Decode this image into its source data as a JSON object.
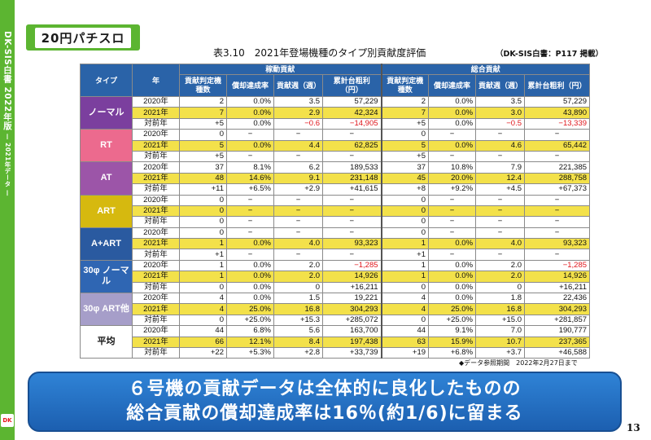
{
  "sidebar": {
    "text_main": "DK-SIS白書 2022年版",
    "text_sub": "— 2021年データ —",
    "logo": "DK"
  },
  "section_label": "20円パチスロ",
  "table_title": "表3.10　2021年登場機種のタイプ別貢献度評価",
  "source_note": "（DK-SIS白書：P117 掲載）",
  "headers": {
    "type": "タイプ",
    "year": "年",
    "group1": "稼動貢献",
    "group2": "総合貢献",
    "cols": [
      "貢献判定機種数",
      "償却達成率",
      "貢献週（週）",
      "累計台粗利（円）",
      "貢献判定機種数",
      "償却達成率",
      "貢献週（週）",
      "累計台粗利（円）"
    ]
  },
  "groups": [
    {
      "type": "ノーマル",
      "color": "#7b3f9e",
      "rows": [
        [
          "2020年",
          "2",
          "0.0%",
          "3.5",
          "57,229",
          "2",
          "0.0%",
          "3.5",
          "57,229"
        ],
        [
          "2021年",
          "7",
          "0.0%",
          "2.9",
          "42,324",
          "7",
          "0.0%",
          "3.0",
          "43,890"
        ],
        [
          "対前年",
          "+5",
          "0.0%",
          "−0.6",
          "−14,905",
          "+5",
          "0.0%",
          "−0.5",
          "−13,339"
        ]
      ]
    },
    {
      "type": "RT",
      "color": "#ec6a8e",
      "rows": [
        [
          "2020年",
          "0",
          "−",
          "−",
          "−",
          "0",
          "−",
          "−",
          "−"
        ],
        [
          "2021年",
          "5",
          "0.0%",
          "4.4",
          "62,825",
          "5",
          "0.0%",
          "4.6",
          "65,442"
        ],
        [
          "対前年",
          "+5",
          "−",
          "−",
          "−",
          "+5",
          "−",
          "−",
          "−"
        ]
      ]
    },
    {
      "type": "AT",
      "color": "#9c55a8",
      "rows": [
        [
          "2020年",
          "37",
          "8.1%",
          "6.2",
          "189,533",
          "37",
          "10.8%",
          "7.9",
          "221,385"
        ],
        [
          "2021年",
          "48",
          "14.6%",
          "9.1",
          "231,148",
          "45",
          "20.0%",
          "12.4",
          "288,758"
        ],
        [
          "対前年",
          "+11",
          "+6.5%",
          "+2.9",
          "+41,615",
          "+8",
          "+9.2%",
          "+4.5",
          "+67,373"
        ]
      ]
    },
    {
      "type": "ART",
      "color": "#d6b90f",
      "rows": [
        [
          "2020年",
          "0",
          "−",
          "−",
          "−",
          "0",
          "−",
          "−",
          "−"
        ],
        [
          "2021年",
          "0",
          "−",
          "−",
          "−",
          "0",
          "−",
          "−",
          "−"
        ],
        [
          "対前年",
          "0",
          "−",
          "−",
          "−",
          "0",
          "−",
          "−",
          "−"
        ]
      ]
    },
    {
      "type": "A+ART",
      "color": "#2a5aa0",
      "rows": [
        [
          "2020年",
          "0",
          "−",
          "−",
          "−",
          "0",
          "−",
          "−",
          "−"
        ],
        [
          "2021年",
          "1",
          "0.0%",
          "4.0",
          "93,323",
          "1",
          "0.0%",
          "4.0",
          "93,323"
        ],
        [
          "対前年",
          "+1",
          "−",
          "−",
          "−",
          "+1",
          "−",
          "−",
          "−"
        ]
      ]
    },
    {
      "type": "30φ ノーマル",
      "color": "#2f66b3",
      "rows": [
        [
          "2020年",
          "1",
          "0.0%",
          "2.0",
          "−1,285",
          "1",
          "0.0%",
          "2.0",
          "−1,285"
        ],
        [
          "2021年",
          "1",
          "0.0%",
          "2.0",
          "14,926",
          "1",
          "0.0%",
          "2.0",
          "14,926"
        ],
        [
          "対前年",
          "0",
          "0.0%",
          "0",
          "+16,211",
          "0",
          "0.0%",
          "0",
          "+16,211"
        ]
      ]
    },
    {
      "type": "30φ ART他",
      "color": "#a69ec9",
      "rows": [
        [
          "2020年",
          "4",
          "0.0%",
          "1.5",
          "19,221",
          "4",
          "0.0%",
          "1.8",
          "22,436"
        ],
        [
          "2021年",
          "4",
          "25.0%",
          "16.8",
          "304,293",
          "4",
          "25.0%",
          "16.8",
          "304,293"
        ],
        [
          "対前年",
          "0",
          "+25.0%",
          "+15.3",
          "+285,072",
          "0",
          "+25.0%",
          "+15.0",
          "+281,857"
        ]
      ]
    },
    {
      "type": "平均",
      "color": "#ffffff",
      "rows": [
        [
          "2020年",
          "44",
          "6.8%",
          "5.6",
          "163,700",
          "44",
          "9.1%",
          "7.0",
          "190,777"
        ],
        [
          "2021年",
          "66",
          "12.1%",
          "8.4",
          "197,438",
          "63",
          "15.9%",
          "10.7",
          "237,365"
        ],
        [
          "対前年",
          "+22",
          "+5.3%",
          "+2.8",
          "+33,739",
          "+19",
          "+6.8%",
          "+3.7",
          "+46,588"
        ]
      ]
    }
  ],
  "footnote": "◆データ参照期間　2022年2月27日まで",
  "banner": {
    "line1": "６号機の貢献データは全体的に良化したものの",
    "line2": "総合貢献の償却達成率は16％(約1/6)に留まる"
  },
  "page_number": "13"
}
